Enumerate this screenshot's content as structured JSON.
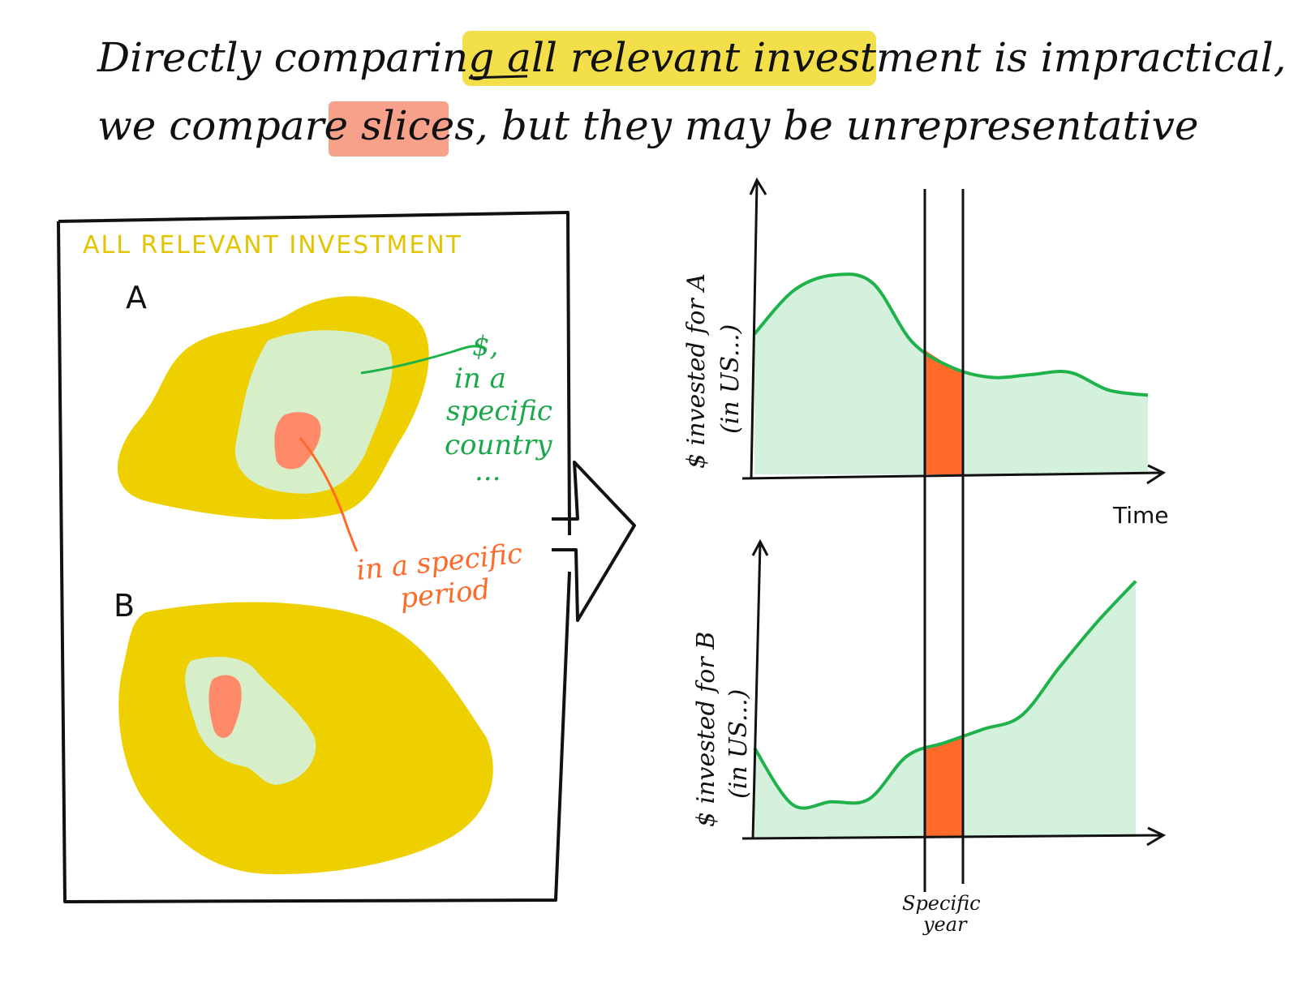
{
  "title": {
    "line1_before": "Directly comparing ",
    "line1_highlight_underlined": "all",
    "line1_highlight_rest": " relevant investment",
    "line1_after": " is impractical, so",
    "line2_before": "we compare ",
    "line2_highlight": "slices,",
    "line2_after": " but they may be unrepresentative"
  },
  "left_panel": {
    "label": "ALL RELEVANT INVESTMENT",
    "letter_a": "A",
    "letter_b": "B",
    "green_note": [
      "$,",
      "in a",
      "specific",
      "country",
      "..."
    ],
    "orange_note": [
      "in a specific",
      "period"
    ]
  },
  "charts": {
    "top_ylabel_line1": "$ invested for A",
    "top_ylabel_line2": "(in US...)",
    "bottom_ylabel_line1": "$ invested for B",
    "bottom_ylabel_line2": "(in US...)",
    "xlabel": "Time",
    "slice_label_line1": "Specific",
    "slice_label_line2": "year"
  },
  "colors": {
    "yellow": "#eed000",
    "light_green": "#d3f1dd",
    "pale_green": "#d6efc9",
    "green_line": "#1fb24a",
    "orange": "#ff6a2a",
    "salmon": "#ff8a6a",
    "highlight_yellow": "#f3df4a",
    "highlight_salmon": "#f7a08a"
  },
  "chart_data": [
    {
      "type": "area",
      "title": "",
      "xlabel": "Time",
      "ylabel": "$ invested for A (in US...)",
      "x": [
        0,
        1,
        2,
        3,
        4,
        5,
        6,
        7,
        8,
        9,
        10
      ],
      "values": [
        0.55,
        0.72,
        0.78,
        0.75,
        0.52,
        0.42,
        0.38,
        0.39,
        0.4,
        0.33,
        0.31
      ],
      "highlight_slice": "Specific year"
    },
    {
      "type": "area",
      "title": "",
      "xlabel": "Time",
      "ylabel": "$ invested for B (in US...)",
      "x": [
        0,
        1,
        2,
        3,
        4,
        5,
        6,
        7,
        8,
        9,
        10
      ],
      "values": [
        0.33,
        0.12,
        0.13,
        0.14,
        0.3,
        0.35,
        0.4,
        0.45,
        0.63,
        0.8,
        0.95
      ],
      "highlight_slice": "Specific year"
    }
  ]
}
